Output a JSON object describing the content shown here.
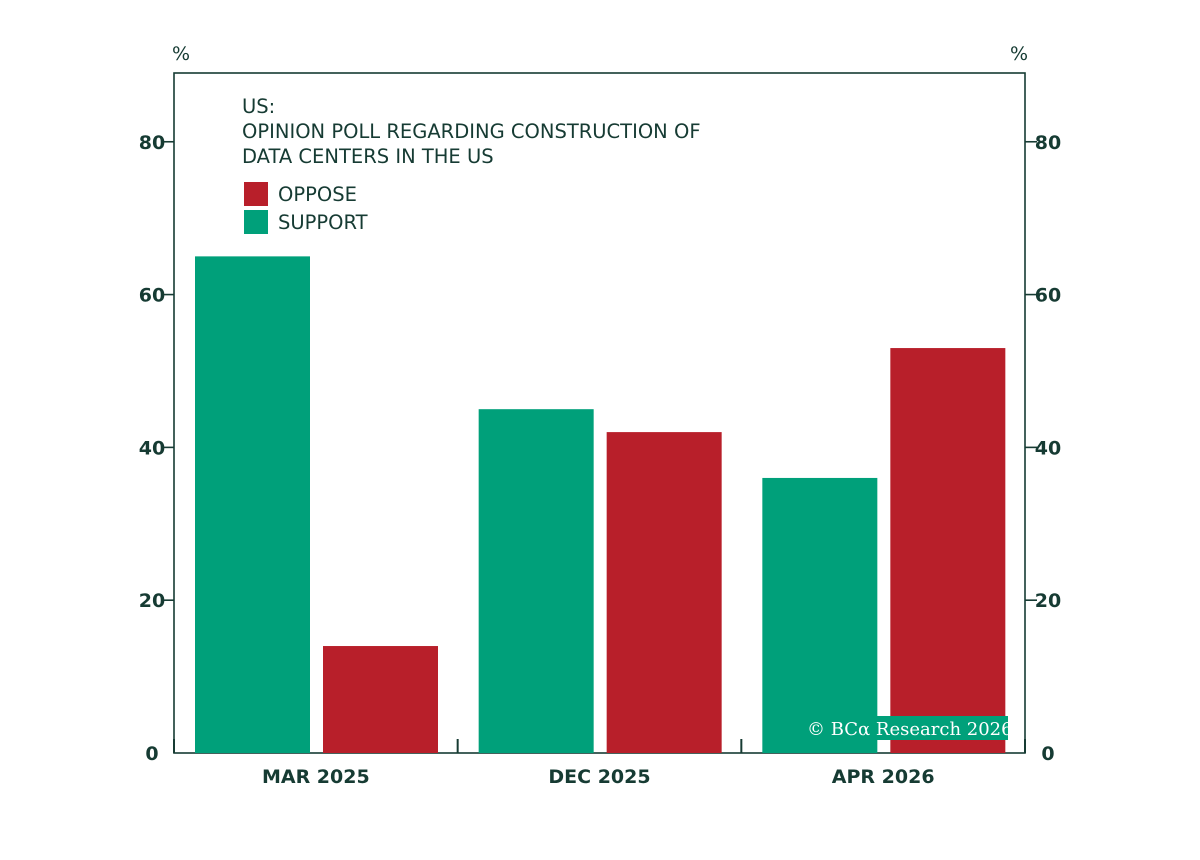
{
  "chart_data": {
    "type": "bar",
    "title_lines": [
      "US:",
      "OPINION POLL REGARDING CONSTRUCTION OF",
      "DATA CENTERS IN THE US"
    ],
    "categories": [
      "MAR 2025",
      "DEC 2025",
      "APR 2026"
    ],
    "series": [
      {
        "name": "SUPPORT",
        "color": "#00a07a",
        "values": [
          65,
          45,
          36
        ]
      },
      {
        "name": "OPPOSE",
        "color": "#b81f2a",
        "values": [
          14,
          42,
          53
        ]
      }
    ],
    "legend_order": [
      "OPPOSE",
      "SUPPORT"
    ],
    "y_unit_left": "%",
    "y_unit_right": "%",
    "ylim": [
      0,
      89
    ],
    "yticks": [
      0,
      20,
      40,
      60,
      80
    ],
    "grid": false,
    "legend_position": "top-left",
    "credit": "© BCα Research 2026"
  }
}
